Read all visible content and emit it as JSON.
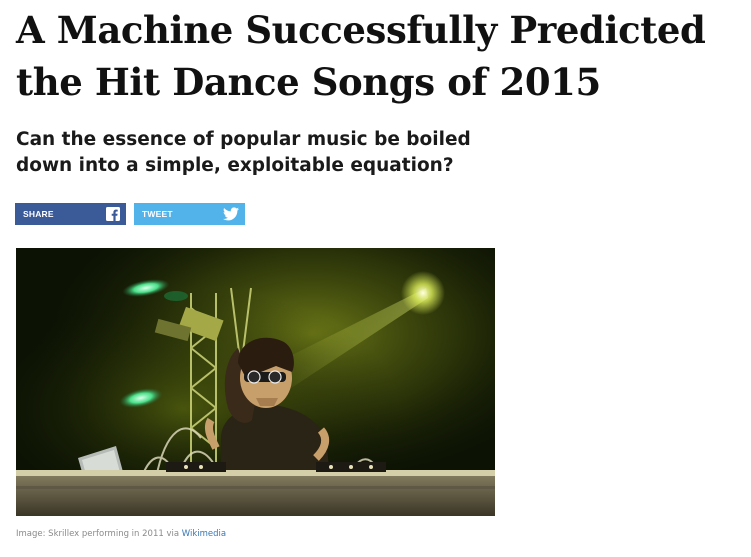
{
  "article": {
    "headline_line1": "A Machine Successfully Predicted",
    "headline_line2": "the Hit Dance Songs of 2015",
    "dek_line1": "Can the essence of popular music be boiled",
    "dek_line2": "down into a simple, exploitable equation?"
  },
  "share": {
    "facebook_label": "SHARE",
    "facebook_icon": "facebook-icon",
    "facebook_color": "#3b5a98",
    "twitter_label": "TWEET",
    "twitter_icon": "twitter-bird-icon",
    "twitter_color": "#52b3ea"
  },
  "image": {
    "caption_prefix": "Image: Skrillex performing in 2011 via",
    "caption_link": "Wikimedia",
    "link_color": "#3a78b5"
  }
}
